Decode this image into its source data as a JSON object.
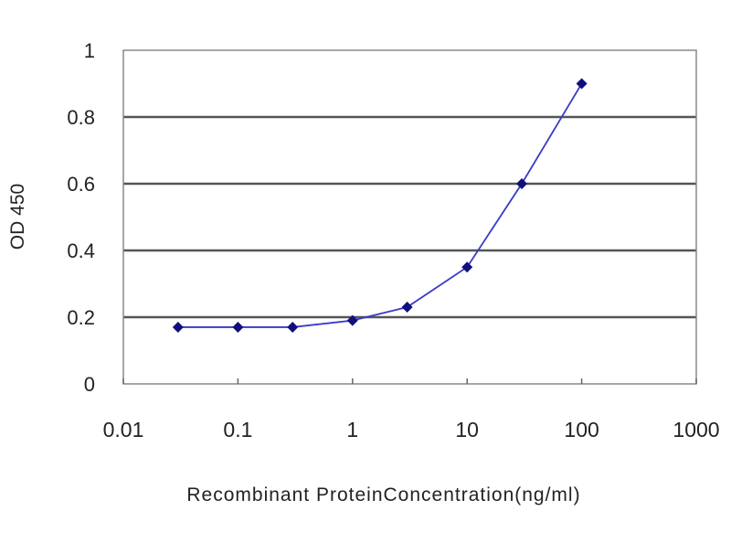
{
  "chart_data": {
    "type": "line",
    "title": "",
    "xlabel": "Recombinant ProteinConcentration(ng/ml)",
    "ylabel": "OD 450",
    "xscale": "log",
    "xlim": [
      0.01,
      1000
    ],
    "ylim": [
      0,
      1
    ],
    "xticks": [
      0.01,
      0.1,
      1,
      10,
      100,
      1000
    ],
    "xtick_labels": [
      "0.01",
      "0.1",
      "1",
      "10",
      "100",
      "1000"
    ],
    "yticks": [
      0,
      0.2,
      0.4,
      0.6,
      0.8,
      1
    ],
    "ytick_labels": [
      "0",
      "0.2",
      "0.4",
      "0.6",
      "0.8",
      "1"
    ],
    "grid": "horizontal",
    "series": [
      {
        "x": [
          0.03,
          0.1,
          0.3,
          1,
          3,
          10,
          30,
          100
        ],
        "y": [
          0.17,
          0.17,
          0.17,
          0.19,
          0.23,
          0.35,
          0.6,
          0.9
        ],
        "line_color": "#3a3ac8",
        "marker_color": "#10107a",
        "marker": "diamond"
      }
    ]
  }
}
